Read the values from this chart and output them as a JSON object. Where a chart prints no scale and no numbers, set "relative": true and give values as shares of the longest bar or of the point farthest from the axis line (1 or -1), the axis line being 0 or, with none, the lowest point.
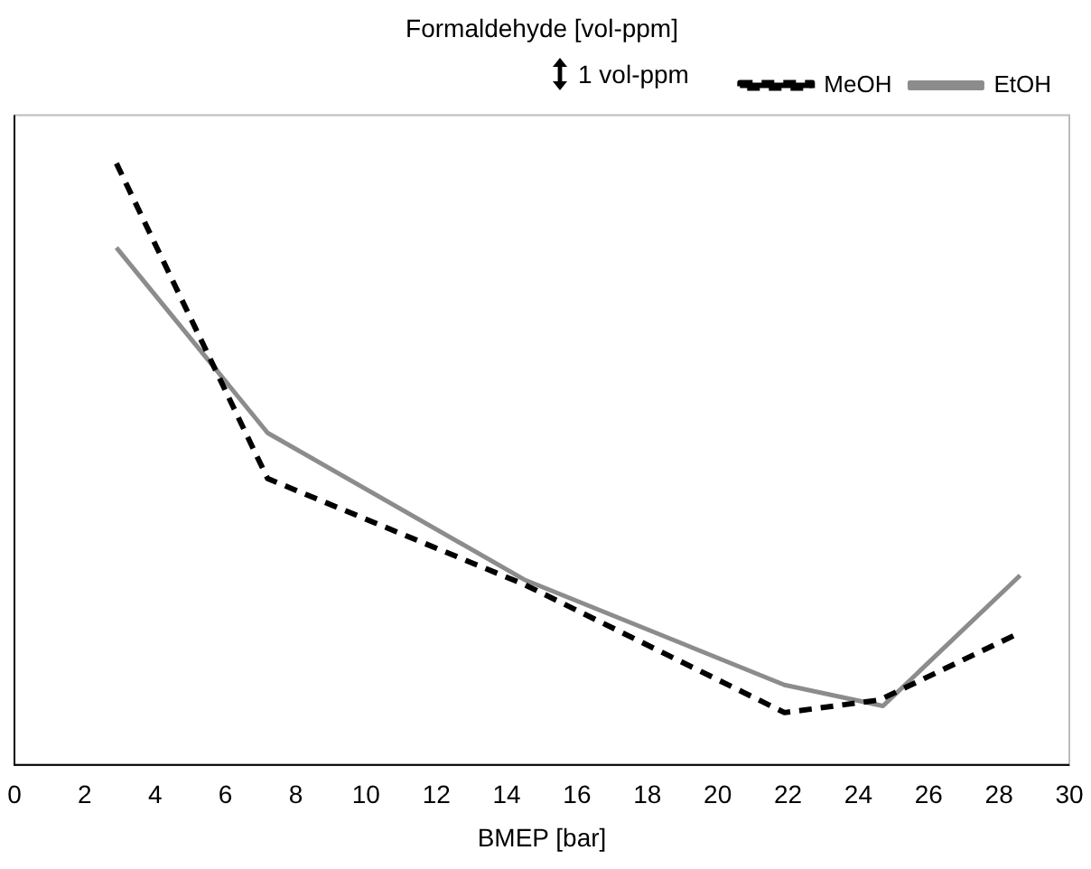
{
  "chart_data": {
    "type": "line",
    "title": "Formaldehyde [vol-ppm]",
    "xlabel": "BMEP [bar]",
    "relative": true,
    "x": [
      2.9,
      7.2,
      14.5,
      21.9,
      24.6,
      28.6
    ],
    "series": [
      {
        "name": "MeOH",
        "color": "#000000",
        "line_style": "dashed",
        "values": [
          1,
          0.476,
          0.3,
          0.087,
          0.108,
          0.22
        ]
      },
      {
        "name": "EtOH",
        "color": "#8c8c8c",
        "line_style": "solid",
        "x": [
          2.9,
          7.2,
          14.5,
          21.9,
          24.7,
          28.6
        ],
        "values": [
          0.86,
          0.552,
          0.308,
          0.133,
          0.098,
          0.315
        ]
      }
    ],
    "xlim": [
      0,
      30
    ],
    "xticks": [
      0,
      2,
      4,
      6,
      8,
      10,
      12,
      14,
      16,
      18,
      20,
      22,
      24,
      26,
      28,
      30
    ],
    "grid": false,
    "legend": "top right",
    "marker": "none",
    "annotations": [
      "1 vol-ppm"
    ]
  }
}
